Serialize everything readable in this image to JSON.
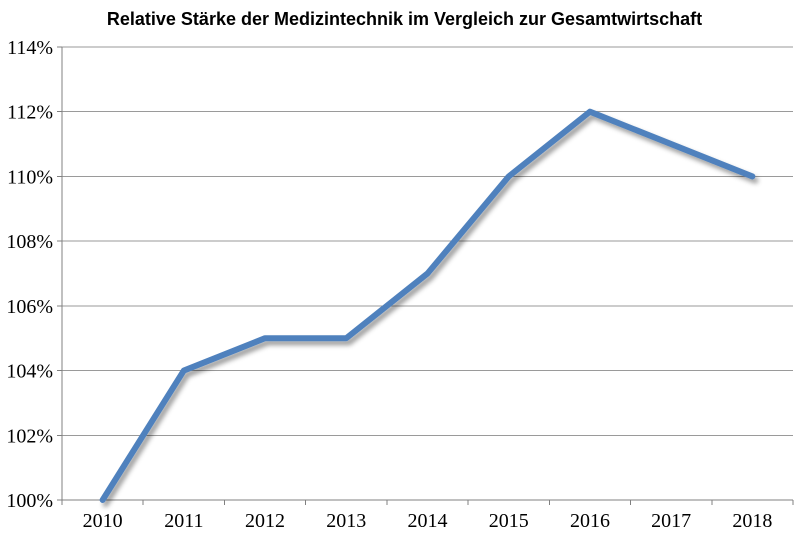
{
  "chart_data": {
    "type": "line",
    "title": "Relative Stärke der Medizintechnik im Vergleich zur Gesamtwirtschaft",
    "categories": [
      "2010",
      "2011",
      "2012",
      "2013",
      "2014",
      "2015",
      "2016",
      "2017",
      "2018"
    ],
    "values": [
      100,
      104,
      105,
      105,
      107,
      110,
      112,
      111,
      110
    ],
    "unit": "%",
    "xlabel": "",
    "ylabel": "",
    "ylim": [
      100,
      114
    ],
    "y_ticks": [
      100,
      102,
      104,
      106,
      108,
      110,
      112,
      114
    ],
    "y_tick_labels": [
      "100%",
      "102%",
      "104%",
      "106%",
      "108%",
      "110%",
      "112%",
      "114%"
    ],
    "grid": "horizontal",
    "legend": "none",
    "line_color": "#4F81BD",
    "line_width": 6,
    "line_shadow": true,
    "gridline_color": "#9A9A9A",
    "axis_color": "#808080",
    "text_color": "#000000",
    "background_color": "#FFFFFF"
  }
}
